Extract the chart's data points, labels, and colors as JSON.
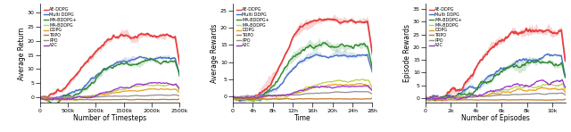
{
  "figsize": [
    6.4,
    1.48
  ],
  "dpi": 100,
  "algorithms": [
    "AE-DDPG",
    "Multi DDPG",
    "MA-BDDPG+",
    "MA-BDDPG",
    "DDPG",
    "TRPO",
    "PPO",
    "A2C"
  ],
  "colors": [
    "#e84040",
    "#4472c4",
    "#2e8b2e",
    "#b8d44e",
    "#e8a020",
    "#c47828",
    "#909090",
    "#9b30d0"
  ],
  "plot1": {
    "xlabel": "Number of Timesteps",
    "ylabel": "Average Return",
    "xlim": [
      0,
      2500000
    ],
    "ylim": [
      -2,
      33
    ],
    "yticks": [
      0,
      5,
      10,
      15,
      20,
      25,
      30
    ],
    "xticks": [
      0,
      500000,
      1000000,
      1500000,
      2000000,
      2500000
    ],
    "xticklabels": [
      "0",
      "500k",
      "1000k",
      "1500k",
      "2000k",
      "2500k"
    ]
  },
  "plot2": {
    "xlabel": "Time",
    "ylabel": "Average Rewards",
    "xlim": [
      0,
      28
    ],
    "ylim": [
      -2,
      27
    ],
    "yticks": [
      0,
      5,
      10,
      15,
      20,
      25
    ],
    "xticks": [
      0,
      4,
      8,
      12,
      16,
      20,
      24,
      28
    ],
    "xticklabels": [
      "0",
      "4h",
      "8h",
      "12h",
      "16h",
      "20h",
      "24h",
      "28h"
    ]
  },
  "plot3": {
    "xlabel": "Number of Episodes",
    "ylabel": "Episode Rewards",
    "xlim": [
      0,
      11000
    ],
    "ylim": [
      -2,
      37
    ],
    "yticks": [
      0,
      5,
      10,
      15,
      20,
      25,
      30,
      35
    ],
    "xticks": [
      0,
      2000,
      4000,
      6000,
      8000,
      10000
    ],
    "xticklabels": [
      "0",
      "2k",
      "4k",
      "6k",
      "8k",
      "10k"
    ]
  }
}
